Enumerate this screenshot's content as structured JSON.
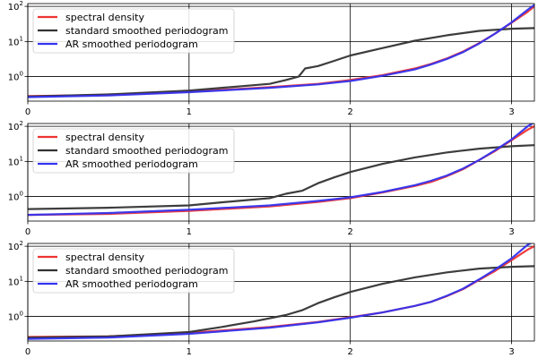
{
  "chart_data": [
    {
      "type": "line",
      "title": "",
      "xlabel": "",
      "ylabel": "",
      "xlim": [
        0,
        3.1416
      ],
      "ylim": [
        0.2,
        120
      ],
      "yscale": "log",
      "grid": true,
      "legend_position": "top-left",
      "xticks": [
        "0",
        "1",
        "2",
        "3"
      ],
      "yticks": [
        "10^0",
        "10^1",
        "10^2"
      ],
      "series": [
        {
          "name": "spectral density",
          "color": "#ee3333",
          "x": [
            0,
            0.5,
            1.0,
            1.5,
            1.8,
            2.0,
            2.2,
            2.4,
            2.5,
            2.6,
            2.7,
            2.8,
            2.9,
            3.0,
            3.1,
            3.1416
          ],
          "y": [
            0.28,
            0.3,
            0.37,
            0.5,
            0.62,
            0.8,
            1.1,
            1.7,
            2.3,
            3.3,
            5.2,
            9.0,
            17,
            34,
            70,
            100
          ]
        },
        {
          "name": "standard smoothed periodogram",
          "color": "#333333",
          "x": [
            0,
            0.5,
            1.0,
            1.5,
            1.6,
            1.68,
            1.72,
            1.8,
            1.9,
            2.0,
            2.2,
            2.4,
            2.6,
            2.8,
            3.0,
            3.1416
          ],
          "y": [
            0.27,
            0.31,
            0.4,
            0.62,
            0.8,
            1.0,
            1.7,
            2.0,
            2.8,
            4.0,
            6.5,
            10.5,
            15,
            20,
            23,
            24
          ]
        },
        {
          "name": "AR smoothed periodogram",
          "color": "#3333ee",
          "x": [
            0,
            0.5,
            1.0,
            1.5,
            1.8,
            2.0,
            2.2,
            2.4,
            2.5,
            2.6,
            2.7,
            2.8,
            2.9,
            3.0,
            3.1,
            3.1416
          ],
          "y": [
            0.26,
            0.29,
            0.36,
            0.48,
            0.6,
            0.75,
            1.05,
            1.6,
            2.2,
            3.2,
            5.0,
            8.8,
            17,
            35,
            80,
            110
          ]
        }
      ]
    },
    {
      "type": "line",
      "title": "",
      "xlabel": "",
      "ylabel": "",
      "xlim": [
        0,
        3.1416
      ],
      "ylim": [
        0.2,
        120
      ],
      "yscale": "log",
      "grid": true,
      "legend_position": "top-left",
      "xticks": [
        "0",
        "1",
        "2",
        "3"
      ],
      "yticks": [
        "10^0",
        "10^1",
        "10^2"
      ],
      "series": [
        {
          "name": "spectral density",
          "color": "#ee3333",
          "x": [
            0,
            0.5,
            1.0,
            1.5,
            1.8,
            2.0,
            2.2,
            2.4,
            2.5,
            2.6,
            2.7,
            2.8,
            2.9,
            3.0,
            3.1,
            3.1416
          ],
          "y": [
            0.3,
            0.32,
            0.39,
            0.52,
            0.7,
            0.9,
            1.3,
            2.0,
            2.6,
            3.8,
            6.0,
            11,
            20,
            40,
            80,
            100
          ]
        },
        {
          "name": "standard smoothed periodogram",
          "color": "#333333",
          "x": [
            0,
            0.5,
            1.0,
            1.2,
            1.5,
            1.6,
            1.7,
            1.8,
            1.9,
            2.0,
            2.2,
            2.4,
            2.6,
            2.8,
            3.0,
            3.1416
          ],
          "y": [
            0.44,
            0.48,
            0.56,
            0.68,
            0.9,
            1.2,
            1.45,
            2.4,
            3.5,
            5.0,
            8.5,
            13,
            18,
            23,
            27,
            29
          ]
        },
        {
          "name": "AR smoothed periodogram",
          "color": "#3333ee",
          "x": [
            0,
            0.5,
            1.0,
            1.5,
            1.8,
            2.0,
            2.2,
            2.4,
            2.5,
            2.6,
            2.7,
            2.8,
            2.9,
            3.0,
            3.1,
            3.1416
          ],
          "y": [
            0.3,
            0.34,
            0.42,
            0.56,
            0.75,
            0.95,
            1.35,
            2.1,
            2.8,
            4.0,
            6.3,
            11,
            21,
            42,
            100,
            130
          ]
        }
      ]
    },
    {
      "type": "line",
      "title": "",
      "xlabel": "",
      "ylabel": "",
      "xlim": [
        0,
        3.1416
      ],
      "ylim": [
        0.2,
        120
      ],
      "yscale": "log",
      "grid": true,
      "legend_position": "top-left",
      "xticks": [
        "0",
        "1",
        "2",
        "3"
      ],
      "yticks": [
        "10^0",
        "10^1",
        "10^2"
      ],
      "series": [
        {
          "name": "spectral density",
          "color": "#ee3333",
          "x": [
            0,
            0.5,
            1.0,
            1.5,
            1.8,
            2.0,
            2.2,
            2.4,
            2.5,
            2.6,
            2.7,
            2.8,
            2.9,
            3.0,
            3.1,
            3.1416
          ],
          "y": [
            0.26,
            0.27,
            0.34,
            0.5,
            0.7,
            0.95,
            1.3,
            2.0,
            2.6,
            3.8,
            6.0,
            11,
            20,
            40,
            80,
            100
          ]
        },
        {
          "name": "standard smoothed periodogram",
          "color": "#333333",
          "x": [
            0,
            0.5,
            1.0,
            1.2,
            1.4,
            1.6,
            1.7,
            1.8,
            1.9,
            2.0,
            2.2,
            2.4,
            2.6,
            2.8,
            3.0,
            3.1416
          ],
          "y": [
            0.25,
            0.27,
            0.36,
            0.5,
            0.72,
            1.1,
            1.5,
            2.4,
            3.5,
            5.0,
            8.5,
            13,
            18,
            23,
            26,
            27
          ]
        },
        {
          "name": "AR smoothed periodogram",
          "color": "#3333ee",
          "x": [
            0,
            0.5,
            1.0,
            1.5,
            1.8,
            2.0,
            2.2,
            2.4,
            2.5,
            2.6,
            2.7,
            2.8,
            2.9,
            3.0,
            3.1,
            3.1416
          ],
          "y": [
            0.23,
            0.25,
            0.32,
            0.48,
            0.68,
            0.92,
            1.3,
            2.0,
            2.6,
            3.9,
            6.2,
            11.5,
            22,
            45,
            110,
            140
          ]
        }
      ]
    }
  ]
}
